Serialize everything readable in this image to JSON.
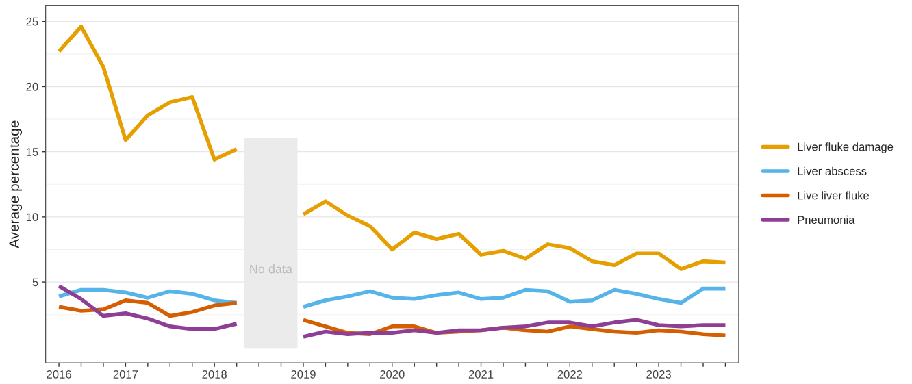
{
  "chart_data": {
    "type": "line",
    "ylabel": "Average percentage",
    "categories": [
      "2016",
      null,
      null,
      "2017",
      null,
      null,
      null,
      "2018",
      null,
      null,
      null,
      "2019",
      null,
      null,
      null,
      "2020",
      null,
      null,
      null,
      "2021",
      null,
      null,
      null,
      "2022",
      null,
      null,
      null,
      "2023",
      null,
      null,
      null
    ],
    "series": [
      {
        "name": "Liver fluke damage",
        "color": "#e69f00",
        "values": [
          22.7,
          24.6,
          21.5,
          15.9,
          17.8,
          18.8,
          19.2,
          14.4,
          15.2,
          null,
          null,
          10.2,
          11.2,
          10.1,
          9.3,
          7.5,
          8.8,
          8.3,
          8.7,
          7.1,
          7.4,
          6.8,
          7.9,
          7.6,
          6.6,
          6.3,
          7.2,
          7.2,
          6.0,
          6.6,
          6.5
        ]
      },
      {
        "name": "Liver abscess",
        "color": "#56b4e9",
        "values": [
          3.9,
          4.4,
          4.4,
          4.2,
          3.8,
          4.3,
          4.1,
          3.6,
          3.4,
          null,
          null,
          3.1,
          3.6,
          3.9,
          4.3,
          3.8,
          3.7,
          4.0,
          4.2,
          3.7,
          3.8,
          4.4,
          4.3,
          3.5,
          3.6,
          4.4,
          4.1,
          3.7,
          3.4,
          4.5,
          4.5
        ]
      },
      {
        "name": "Live liver fluke",
        "color": "#d55e00",
        "values": [
          3.1,
          2.8,
          2.9,
          3.6,
          3.4,
          2.4,
          2.7,
          3.2,
          3.4,
          null,
          null,
          2.1,
          1.6,
          1.1,
          1.0,
          1.6,
          1.6,
          1.1,
          1.2,
          1.3,
          1.5,
          1.3,
          1.2,
          1.6,
          1.4,
          1.2,
          1.1,
          1.3,
          1.2,
          1.0,
          0.9
        ]
      },
      {
        "name": "Pneumonia",
        "color": "#8e3f95",
        "values": [
          4.7,
          3.7,
          2.4,
          2.6,
          2.2,
          1.6,
          1.4,
          1.4,
          1.8,
          null,
          null,
          0.8,
          1.2,
          1.0,
          1.1,
          1.1,
          1.3,
          1.1,
          1.3,
          1.3,
          1.5,
          1.6,
          1.9,
          1.9,
          1.6,
          1.9,
          2.1,
          1.7,
          1.6,
          1.7,
          1.7
        ]
      }
    ],
    "ylim": [
      -1.2,
      26.2
    ],
    "yticks": [
      5,
      10,
      15,
      20,
      25
    ],
    "annotations": [
      "No data"
    ],
    "grid": "y",
    "legend": "right",
    "line_style": "solid",
    "marker": "none"
  }
}
